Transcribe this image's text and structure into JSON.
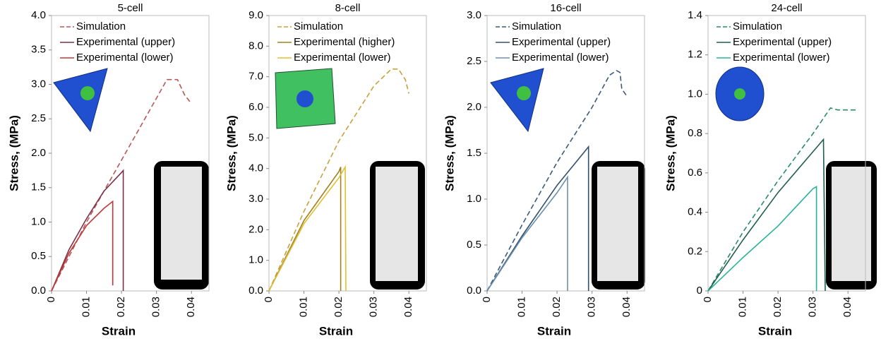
{
  "chart_data": [
    {
      "type": "line",
      "title": "5-cell",
      "x_label": "Strain",
      "y_label": "Stress, (MPa)",
      "xlim": [
        0,
        0.045
      ],
      "ylim": [
        0,
        4.0
      ],
      "xticks": [
        0,
        0.01,
        0.02,
        0.03,
        0.04
      ],
      "yticks": [
        {
          "value": 0,
          "label": "0.0"
        },
        0.5,
        {
          "value": 1,
          "label": "1.0"
        },
        1.5,
        {
          "value": 2,
          "label": "2.0"
        },
        2.5,
        {
          "value": 3,
          "label": "3.0"
        },
        3.5,
        {
          "value": 4,
          "label": "4.0"
        }
      ],
      "legend": "upper left",
      "series": [
        {
          "name": "Simulation",
          "color": "#b5585a",
          "style": "dashed",
          "x": [
            0,
            0.005,
            0.01,
            0.015,
            0.02,
            0.025,
            0.03,
            0.033,
            0.036,
            0.038,
            0.04
          ],
          "values": [
            0,
            0.5,
            1.0,
            1.45,
            1.9,
            2.35,
            2.8,
            3.07,
            3.07,
            2.85,
            2.72
          ]
        },
        {
          "name": "Experimental (upper)",
          "color": "#7a3046",
          "style": "solid",
          "x": [
            0,
            0.005,
            0.01,
            0.015,
            0.02,
            0.0205,
            0.0205
          ],
          "values": [
            0,
            0.6,
            1.05,
            1.45,
            1.72,
            1.75,
            0
          ]
        },
        {
          "name": "Experimental (lower)",
          "color": "#c0383a",
          "style": "solid",
          "x": [
            0,
            0.005,
            0.01,
            0.015,
            0.0175,
            0.0175
          ],
          "values": [
            0,
            0.55,
            0.95,
            1.2,
            1.3,
            0.08
          ]
        }
      ]
    },
    {
      "type": "line",
      "title": "8-cell",
      "x_label": "Strain",
      "y_label": "Stress, (MPa)",
      "xlim": [
        0,
        0.045
      ],
      "ylim": [
        0,
        9.0
      ],
      "xticks": [
        0,
        0.01,
        0.02,
        0.03,
        0.04
      ],
      "yticks": [
        {
          "value": 0,
          "label": "0.0"
        },
        {
          "value": 1,
          "label": "1.0"
        },
        {
          "value": 2,
          "label": "2.0"
        },
        {
          "value": 3,
          "label": "3.0"
        },
        {
          "value": 4,
          "label": "4.0"
        },
        {
          "value": 5,
          "label": "5.0"
        },
        {
          "value": 6,
          "label": "6.0"
        },
        {
          "value": 7,
          "label": "7.0"
        },
        {
          "value": 8,
          "label": "8.0"
        },
        {
          "value": 9,
          "label": "9.0"
        }
      ],
      "legend": "upper left",
      "series": [
        {
          "name": "Simulation",
          "color": "#c9a040",
          "style": "dashed",
          "x": [
            0,
            0.01,
            0.02,
            0.03,
            0.035,
            0.037,
            0.039,
            0.04
          ],
          "values": [
            0,
            2.6,
            4.9,
            6.7,
            7.25,
            7.25,
            6.9,
            6.45
          ]
        },
        {
          "name": "Experimental (higher)",
          "color": "#a08020",
          "style": "solid",
          "x": [
            0,
            0.01,
            0.02,
            0.0205,
            0.0205
          ],
          "values": [
            0,
            2.3,
            3.9,
            4.05,
            0
          ]
        },
        {
          "name": "Experimental (lower)",
          "color": "#e0c030",
          "style": "solid",
          "x": [
            0,
            0.01,
            0.02,
            0.0218,
            0.022
          ],
          "values": [
            0,
            2.2,
            3.7,
            4.05,
            0
          ]
        }
      ]
    },
    {
      "type": "line",
      "title": "16-cell",
      "x_label": "Strain",
      "y_label": "Stress, (MPa)",
      "xlim": [
        0,
        0.045
      ],
      "ylim": [
        0,
        3.0
      ],
      "xticks": [
        0,
        0.01,
        0.02,
        0.03,
        0.04
      ],
      "yticks": [
        {
          "value": 0,
          "label": "0.0"
        },
        0.5,
        {
          "value": 1,
          "label": "1.0"
        },
        1.5,
        {
          "value": 2,
          "label": "2.0"
        },
        2.5,
        {
          "value": 3,
          "label": "3.0"
        }
      ],
      "legend": "upper left",
      "series": [
        {
          "name": "Simulation",
          "color": "#3b5a7a",
          "style": "dashed",
          "x": [
            0,
            0.01,
            0.02,
            0.03,
            0.035,
            0.037,
            0.038,
            0.0385,
            0.04
          ],
          "values": [
            0,
            0.72,
            1.4,
            2.0,
            2.35,
            2.4,
            2.38,
            2.2,
            2.12
          ]
        },
        {
          "name": "Experimental (upper)",
          "color": "#33506e",
          "style": "solid",
          "x": [
            0,
            0.01,
            0.02,
            0.029,
            0.029
          ],
          "values": [
            0,
            0.6,
            1.15,
            1.57,
            0
          ]
        },
        {
          "name": "Experimental (lower)",
          "color": "#6a90b0",
          "style": "solid",
          "x": [
            0,
            0.01,
            0.02,
            0.023,
            0.023
          ],
          "values": [
            0,
            0.58,
            1.07,
            1.24,
            0
          ]
        }
      ]
    },
    {
      "type": "line",
      "title": "24-cell",
      "x_label": "Strain",
      "y_label": "Stress, (MPa)",
      "xlim": [
        0,
        0.045
      ],
      "ylim": [
        0,
        1.4
      ],
      "xticks": [
        0,
        0.01,
        0.02,
        0.03,
        0.04
      ],
      "yticks": [
        0,
        0.2,
        0.4,
        0.6,
        0.8,
        {
          "value": 1,
          "label": "1.0"
        },
        1.2,
        1.4
      ],
      "legend": "upper left",
      "series": [
        {
          "name": "Simulation",
          "color": "#2a8a6a",
          "style": "dashed",
          "x": [
            0,
            0.01,
            0.02,
            0.03,
            0.035,
            0.037,
            0.043
          ],
          "values": [
            0,
            0.3,
            0.56,
            0.8,
            0.93,
            0.92,
            0.92
          ]
        },
        {
          "name": "Experimental (upper)",
          "color": "#1f5e4e",
          "style": "solid",
          "x": [
            0,
            0.01,
            0.02,
            0.033,
            0.0335
          ],
          "values": [
            0,
            0.26,
            0.5,
            0.77,
            0
          ]
        },
        {
          "name": "Experimental (lower)",
          "color": "#2ab39a",
          "style": "solid",
          "x": [
            0,
            0.01,
            0.02,
            0.03,
            0.031,
            0.031
          ],
          "values": [
            0,
            0.17,
            0.33,
            0.52,
            0.53,
            0
          ]
        }
      ]
    }
  ]
}
